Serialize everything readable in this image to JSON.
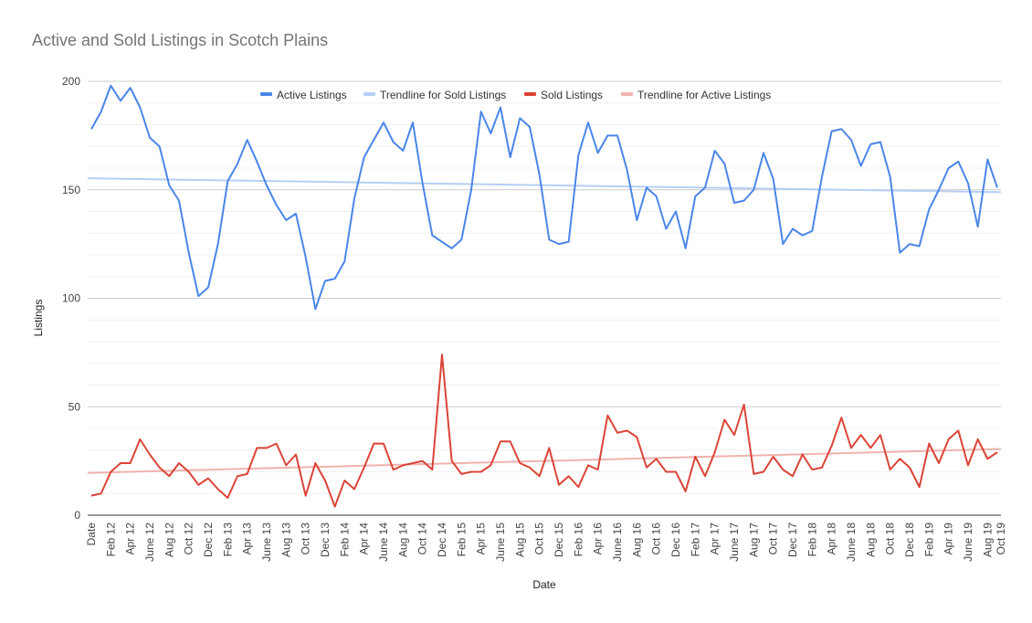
{
  "chart_data": {
    "type": "line",
    "title": "Active and Sold Listings in Scotch Plains",
    "xlabel": "Date",
    "ylabel": "Listings",
    "ylim": [
      0,
      200
    ],
    "yticks": [
      0,
      50,
      100,
      150,
      200
    ],
    "grid": true,
    "legend_position": "top",
    "x_tick_labels": [
      "Date",
      "Feb 12",
      "Apr 12",
      "June 12",
      "Aug 12",
      "Oct 12",
      "Dec 12",
      "Feb 13",
      "Apr 13",
      "June 13",
      "Aug 13",
      "Oct 13",
      "Dec 13",
      "Feb 14",
      "Apr 14",
      "June 14",
      "Aug 14",
      "Oct 14",
      "Dec 14",
      "Feb 15",
      "Apr 15",
      "June 15",
      "Aug 15",
      "Oct 15",
      "Dec 15",
      "Feb 16",
      "Apr 16",
      "June 16",
      "Aug 16",
      "Oct 16",
      "Dec 16",
      "Feb 17",
      "Apr 17",
      "June 17",
      "Aug 17",
      "Oct 17",
      "Dec 17",
      "Feb 18",
      "Apr 18",
      "June 18",
      "Aug 18",
      "Oct 18",
      "Dec 18",
      "Feb 19",
      "Apr 19",
      "June 19",
      "Aug 19",
      "Oct 19"
    ],
    "legend": [
      {
        "label": "Active Listings",
        "color": "#4a86e8"
      },
      {
        "label": "Trendline for Sold Listings",
        "color": "#b6cff5"
      },
      {
        "label": "Sold Listings",
        "color": "#db4437"
      },
      {
        "label": "Trendline for Active Listings",
        "color": "#f0b3ae"
      }
    ],
    "series": [
      {
        "name": "Active Listings",
        "color": "#4a86e8",
        "values": [
          178,
          186,
          198,
          191,
          197,
          188,
          174,
          170,
          152,
          145,
          121,
          101,
          105,
          125,
          154,
          162,
          173,
          163,
          152,
          143,
          136,
          139,
          119,
          95,
          108,
          109,
          117,
          146,
          165,
          173,
          181,
          172,
          168,
          181,
          153,
          129,
          126,
          123,
          127,
          150,
          186,
          176,
          188,
          165,
          183,
          179,
          157,
          127,
          125,
          126,
          166,
          181,
          167,
          175,
          175,
          159,
          136,
          151,
          147,
          132,
          140,
          123,
          147,
          151,
          168,
          162,
          144,
          145,
          150,
          167,
          155,
          125,
          132,
          129,
          131,
          156,
          177,
          178,
          173,
          161,
          171,
          172,
          156,
          121,
          125,
          124,
          141,
          150,
          160,
          163,
          153,
          133,
          164,
          151
        ]
      },
      {
        "name": "Sold Listings",
        "color": "#db4437",
        "values": [
          9,
          10,
          20,
          24,
          24,
          35,
          28,
          22,
          18,
          24,
          20,
          14,
          17,
          12,
          8,
          18,
          19,
          31,
          31,
          33,
          23,
          28,
          9,
          24,
          16,
          4,
          16,
          12,
          22,
          33,
          33,
          21,
          23,
          24,
          25,
          21,
          74,
          25,
          19,
          20,
          20,
          23,
          34,
          34,
          24,
          22,
          18,
          31,
          14,
          18,
          13,
          23,
          21,
          46,
          38,
          39,
          36,
          22,
          26,
          20,
          20,
          11,
          27,
          18,
          29,
          44,
          37,
          51,
          19,
          20,
          27,
          21,
          18,
          28,
          21,
          22,
          32,
          45,
          31,
          37,
          31,
          37,
          21,
          26,
          22,
          13,
          33,
          24,
          35,
          39,
          23,
          35,
          26,
          29
        ]
      },
      {
        "name": "Trendline for Sold Listings",
        "color": "#b6cff5",
        "values": [
          155.3,
          148.9
        ]
      },
      {
        "name": "Trendline for Active Listings",
        "color": "#f0b3ae",
        "values": [
          19.5,
          30.5
        ]
      }
    ]
  }
}
